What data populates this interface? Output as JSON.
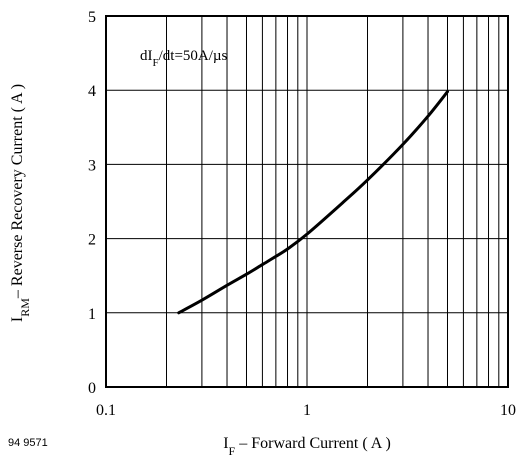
{
  "chart_data": {
    "type": "line",
    "xscale": "log",
    "xlim": [
      0.1,
      10
    ],
    "ylim": [
      0,
      5
    ],
    "grid": true,
    "xticks": [
      0.1,
      1,
      10
    ],
    "xtick_labels": [
      "0.1",
      "1",
      "10"
    ],
    "yticks": [
      0,
      1,
      2,
      3,
      4,
      5
    ],
    "ytick_labels": [
      "0",
      "1",
      "2",
      "3",
      "4",
      "5"
    ],
    "xlabel": {
      "main": "I",
      "sub": "F",
      "rest": " – Forward Current ( A )"
    },
    "ylabel": {
      "main": "I",
      "sub": "RM",
      "rest": "– Reverse Recovery Current ( A )"
    },
    "annotation": {
      "pre": "dI",
      "sub": "F",
      "post": "/dt=50A/µs"
    },
    "figure_id": "94 9571",
    "series": [
      {
        "color": "#000000",
        "x": [
          0.23,
          0.3,
          0.4,
          0.5,
          0.6,
          0.7,
          0.8,
          1.0,
          1.5,
          2.0,
          3.0,
          4.0,
          5.0
        ],
        "y": [
          1.0,
          1.17,
          1.37,
          1.52,
          1.65,
          1.76,
          1.86,
          2.06,
          2.48,
          2.79,
          3.27,
          3.65,
          3.98
        ]
      }
    ]
  }
}
